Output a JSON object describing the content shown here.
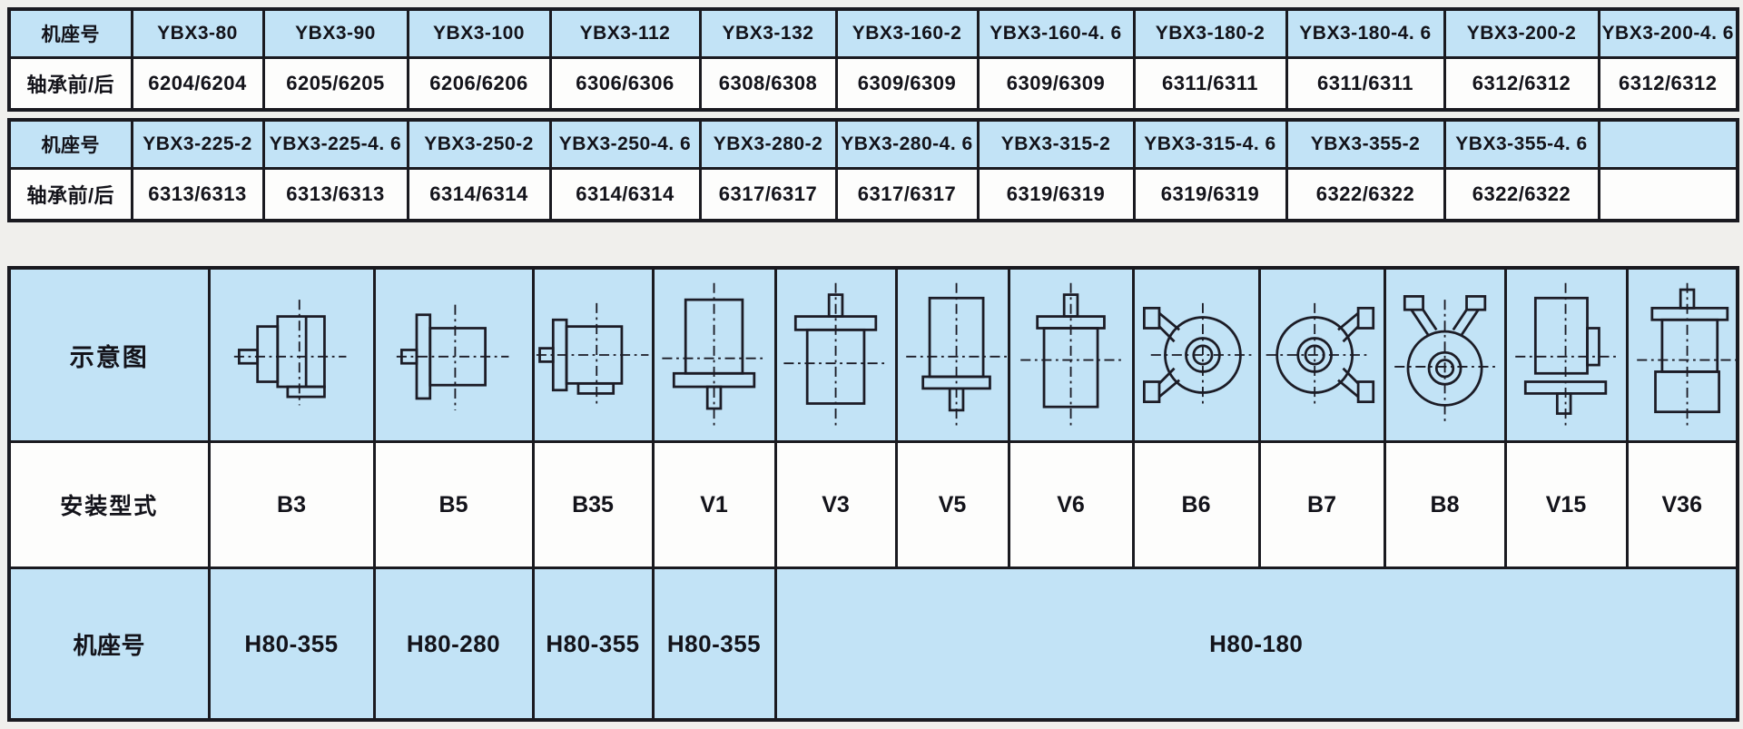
{
  "page": {
    "background_color": "#f0efec",
    "cell_blue_color": "#c2e3f6",
    "border_color": "#1a1a20"
  },
  "bearing_table": {
    "row_pairs": [
      {
        "frame_label": "机座号",
        "bearing_label": "轴承前/后",
        "columns": [
          {
            "frame": "YBX3-80",
            "bearing": "6204/6204"
          },
          {
            "frame": "YBX3-90",
            "bearing": "6205/6205"
          },
          {
            "frame": "YBX3-100",
            "bearing": "6206/6206"
          },
          {
            "frame": "YBX3-112",
            "bearing": "6306/6306"
          },
          {
            "frame": "YBX3-132",
            "bearing": "6308/6308"
          },
          {
            "frame": "YBX3-160-2",
            "bearing": "6309/6309"
          },
          {
            "frame": "YBX3-160-4. 6",
            "bearing": "6309/6309"
          },
          {
            "frame": "YBX3-180-2",
            "bearing": "6311/6311"
          },
          {
            "frame": "YBX3-180-4. 6",
            "bearing": "6311/6311"
          },
          {
            "frame": "YBX3-200-2",
            "bearing": "6312/6312"
          },
          {
            "frame": "YBX3-200-4. 6",
            "bearing": "6312/6312"
          }
        ]
      },
      {
        "frame_label": "机座号",
        "bearing_label": "轴承前/后",
        "columns": [
          {
            "frame": "YBX3-225-2",
            "bearing": "6313/6313"
          },
          {
            "frame": "YBX3-225-4. 6",
            "bearing": "6313/6313"
          },
          {
            "frame": "YBX3-250-2",
            "bearing": "6314/6314"
          },
          {
            "frame": "YBX3-250-4. 6",
            "bearing": "6314/6314"
          },
          {
            "frame": "YBX3-280-2",
            "bearing": "6317/6317"
          },
          {
            "frame": "YBX3-280-4. 6",
            "bearing": "6317/6317"
          },
          {
            "frame": "YBX3-315-2",
            "bearing": "6319/6319"
          },
          {
            "frame": "YBX3-315-4. 6",
            "bearing": "6319/6319"
          },
          {
            "frame": "YBX3-355-2",
            "bearing": "6322/6322"
          },
          {
            "frame": "YBX3-355-4. 6",
            "bearing": "6322/6322"
          },
          {
            "frame": "",
            "bearing": ""
          }
        ]
      }
    ]
  },
  "mounting_table": {
    "diagram_label": "示意图",
    "type_label": "安装型式",
    "frame_label": "机座号",
    "mounts": [
      {
        "type": "B3",
        "diagram_icon": "b3-mount-diagram"
      },
      {
        "type": "B5",
        "diagram_icon": "b5-mount-diagram"
      },
      {
        "type": "B35",
        "diagram_icon": "b35-mount-diagram"
      },
      {
        "type": "V1",
        "diagram_icon": "v1-mount-diagram"
      },
      {
        "type": "V3",
        "diagram_icon": "v3-mount-diagram"
      },
      {
        "type": "V5",
        "diagram_icon": "v5-mount-diagram"
      },
      {
        "type": "V6",
        "diagram_icon": "v6-mount-diagram"
      },
      {
        "type": "B6",
        "diagram_icon": "b6-mount-diagram"
      },
      {
        "type": "B7",
        "diagram_icon": "b7-mount-diagram"
      },
      {
        "type": "B8",
        "diagram_icon": "b8-mount-diagram"
      },
      {
        "type": "V15",
        "diagram_icon": "v15-mount-diagram"
      },
      {
        "type": "V36",
        "diagram_icon": "v36-mount-diagram"
      }
    ],
    "frame_cells": [
      {
        "value": "H80-355",
        "span": 1
      },
      {
        "value": "H80-280",
        "span": 1
      },
      {
        "value": "H80-355",
        "span": 1
      },
      {
        "value": "H80-355",
        "span": 1
      },
      {
        "value": "H80-180",
        "span": 8
      }
    ]
  }
}
